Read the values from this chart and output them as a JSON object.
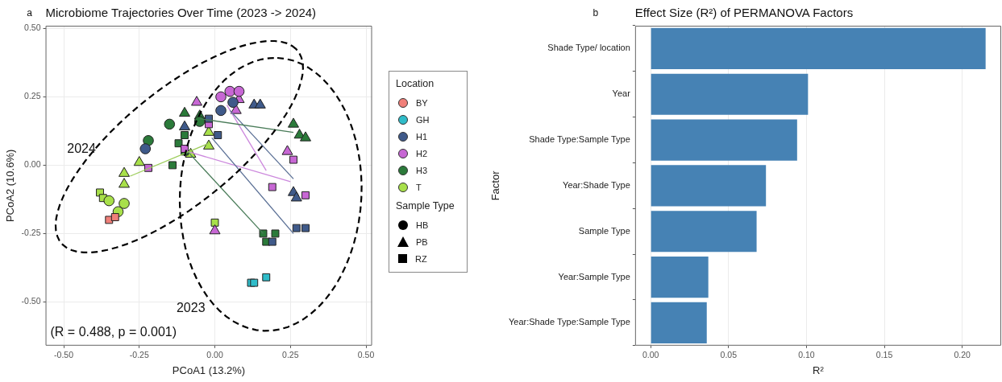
{
  "chart_data": [
    {
      "type": "scatter",
      "title": "Microbiome Trajectories Over Time (2023 -> 2024)",
      "xlabel": "PCoA1 (13.2%)",
      "ylabel": "PCoA2 (10.6%)",
      "legend_title": "Location",
      "legend": "right",
      "grid": true,
      "xlim": [
        -0.56,
        0.52
      ],
      "ylim": [
        -0.66,
        0.51
      ],
      "xticks": [
        {
          "value": -0.5,
          "label": "-0.50"
        },
        -0.25,
        {
          "value": 0,
          "label": "0.00"
        },
        0.25,
        {
          "value": 0.5,
          "label": "0.50"
        }
      ],
      "yticks": [
        {
          "value": -0.5,
          "label": "-0.50"
        },
        -0.25,
        {
          "value": 0,
          "label": "0.00"
        },
        0.25,
        {
          "value": 0.5,
          "label": "0.50"
        }
      ],
      "annotations": [
        "a",
        "(R = 0.488, p = 0.001)",
        "2024",
        "2023",
        "Sample Type",
        "HB",
        "PB",
        "RZ"
      ],
      "series": [
        {
          "name": "BY",
          "color": "#f07f79",
          "marker": "square",
          "x": [
            -0.35,
            -0.33
          ],
          "values": [
            -0.2,
            -0.19
          ]
        },
        {
          "name": "GH",
          "color": "#2fbcc9",
          "marker": "square",
          "x": [
            0.12,
            0.13,
            0.17
          ],
          "values": [
            -0.43,
            -0.43,
            -0.41
          ]
        },
        {
          "name": "H1",
          "color": "#3f5a8a",
          "marker": "circle",
          "x": [
            -0.23,
            0.02,
            0.06
          ],
          "values": [
            0.06,
            0.2,
            0.23
          ]
        },
        {
          "color": "#3f5a8a",
          "marker": "triangle",
          "x": [
            -0.1,
            0.13,
            0.15,
            0.26,
            0.27
          ],
          "values": [
            0.14,
            0.22,
            0.22,
            -0.1,
            -0.12
          ]
        },
        {
          "color": "#3f5a8a",
          "marker": "square",
          "x": [
            -0.02,
            0.01,
            0.27,
            0.3,
            0.19
          ],
          "values": [
            0.17,
            0.11,
            -0.23,
            -0.23,
            -0.28
          ]
        },
        {
          "name": "H2",
          "color": "#c767d4",
          "marker": "circle",
          "x": [
            0.02,
            0.05,
            0.08
          ],
          "values": [
            0.25,
            0.27,
            0.27
          ]
        },
        {
          "color": "#c767d4",
          "marker": "triangle",
          "x": [
            -0.06,
            0.08,
            0.07,
            0.24,
            0
          ],
          "values": [
            0.23,
            0.24,
            0.2,
            0.05,
            -0.24
          ]
        },
        {
          "color": "#c767d4",
          "marker": "square",
          "x": [
            -0.22,
            -0.02,
            -0.1,
            0.26,
            0.19,
            0.3
          ],
          "values": [
            -0.01,
            0.15,
            0.06,
            0.02,
            -0.08,
            -0.11
          ]
        },
        {
          "name": "H3",
          "color": "#2b7a3a",
          "marker": "circle",
          "x": [
            -0.15,
            -0.22,
            -0.05
          ],
          "values": [
            0.15,
            0.09,
            0.16
          ]
        },
        {
          "color": "#2b7a3a",
          "marker": "triangle",
          "x": [
            -0.1,
            -0.05,
            0.26,
            0.28,
            0.3
          ],
          "values": [
            0.19,
            0.18,
            0.15,
            0.11,
            0.1
          ]
        },
        {
          "color": "#2b7a3a",
          "marker": "square",
          "x": [
            -0.1,
            -0.12,
            -0.1,
            -0.14,
            0.16,
            0.2,
            0.17
          ],
          "values": [
            0.11,
            0.08,
            0.05,
            0,
            -0.25,
            -0.25,
            -0.28
          ]
        },
        {
          "name": "T",
          "color": "#a8e04a",
          "marker": "circle",
          "x": [
            -0.35,
            -0.3,
            -0.32
          ],
          "values": [
            -0.13,
            -0.14,
            -0.17
          ]
        },
        {
          "color": "#a8e04a",
          "marker": "triangle",
          "x": [
            -0.25,
            -0.3,
            -0.3,
            -0.08,
            -0.02,
            -0.02
          ],
          "values": [
            0.01,
            -0.03,
            -0.07,
            0.04,
            0.12,
            0.07
          ]
        },
        {
          "color": "#a8e04a",
          "marker": "square",
          "x": [
            -0.38,
            -0.37,
            0
          ],
          "values": [
            -0.1,
            -0.12,
            -0.21
          ]
        },
        {
          "type": "line",
          "color": "#9ccc5a",
          "marker": "none",
          "line_style": "solid",
          "x": [
            -0.28,
            -0.02
          ],
          "values": [
            -0.04,
            0.08
          ]
        },
        {
          "type": "line",
          "color": "#4a7c59",
          "marker": "none",
          "line_style": "solid",
          "x": [
            -0.05,
            0.26
          ],
          "values": [
            0.17,
            0.12
          ]
        },
        {
          "type": "line",
          "color": "#4a7c59",
          "marker": "none",
          "line_style": "solid",
          "x": [
            -0.09,
            0.16
          ],
          "values": [
            0.05,
            -0.25
          ]
        },
        {
          "type": "line",
          "color": "#5a6f95",
          "marker": "none",
          "line_style": "solid",
          "x": [
            -0.01,
            0.26
          ],
          "values": [
            0.1,
            -0.25
          ]
        },
        {
          "type": "line",
          "color": "#5a6f95",
          "marker": "none",
          "line_style": "solid",
          "x": [
            0.05,
            0.26
          ],
          "values": [
            0.2,
            -0.05
          ]
        },
        {
          "type": "line",
          "color": "#cc88dd",
          "marker": "none",
          "line_style": "solid",
          "x": [
            0.04,
            0.17
          ],
          "values": [
            0.22,
            -0.02
          ]
        },
        {
          "type": "line",
          "color": "#cc88dd",
          "marker": "none",
          "line_style": "solid",
          "x": [
            -0.09,
            0.25
          ],
          "values": [
            0.05,
            -0.06
          ]
        }
      ]
    },
    {
      "type": "bar",
      "orientation": "horizontal",
      "title": "Effect Size (R²) of PERMANOVA Factors",
      "xlabel": "R²",
      "ylabel": "Factor",
      "grid": "x",
      "color": "#4682b4",
      "categories": [
        "Shade Type/ location",
        "Year",
        "Shade Type:Sample Type",
        "Year:Shade Type",
        "Sample Type",
        "Year:Sample Type",
        "Year:Shade Type:Sample Type"
      ],
      "values": [
        0.215,
        0.101,
        0.094,
        0.074,
        0.068,
        0.037,
        0.036
      ],
      "xlim": [
        -0.01,
        0.225
      ],
      "xticks": [
        {
          "value": 0,
          "label": "0.00"
        },
        0.05,
        {
          "value": 0.1,
          "label": "0.10"
        },
        0.15,
        {
          "value": 0.2,
          "label": "0.20"
        }
      ],
      "annotations": [
        "b"
      ]
    }
  ]
}
